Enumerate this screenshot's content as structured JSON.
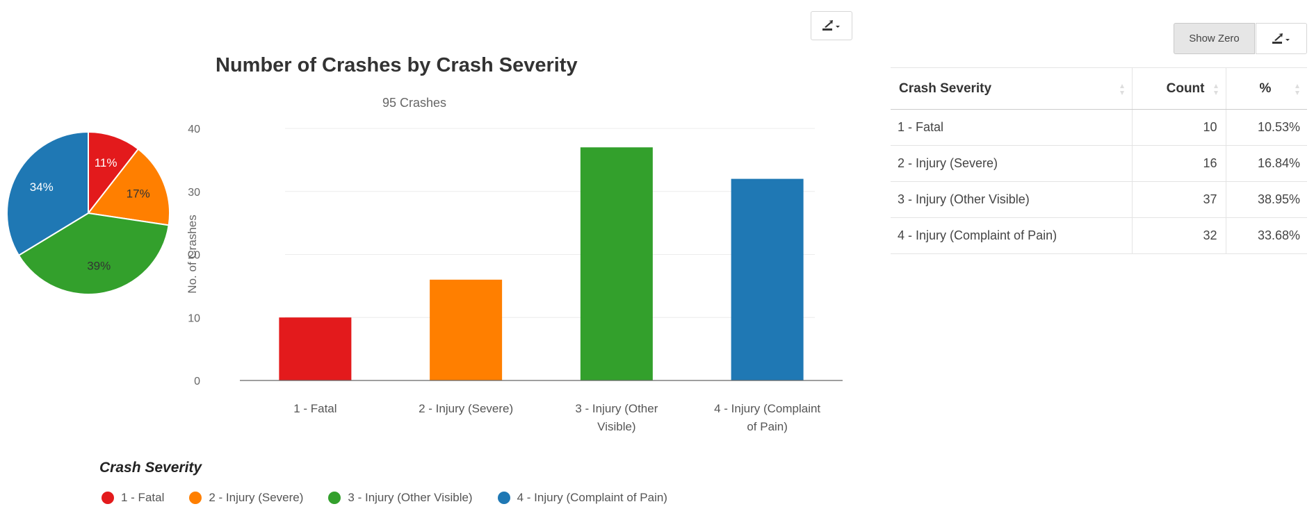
{
  "chart_data": {
    "type": "bar",
    "title": "Number of Crashes by Crash Severity",
    "subtitle": "95 Crashes",
    "ylabel": "No. of Crashes",
    "xlabel": "",
    "ylim": [
      0,
      40
    ],
    "yticks": [
      0,
      10,
      20,
      30,
      40
    ],
    "grid": true,
    "categories": [
      "1 - Fatal",
      "2 - Injury (Severe)",
      "3 - Injury (Other Visible)",
      "4 - Injury (Complaint of Pain)"
    ],
    "category_label_lines": [
      [
        "1 - Fatal"
      ],
      [
        "2 - Injury (Severe)"
      ],
      [
        "3 - Injury (Other",
        "Visible)"
      ],
      [
        "4 - Injury (Complaint",
        "of Pain)"
      ]
    ],
    "values": [
      10,
      16,
      37,
      32
    ],
    "colors": [
      "#e31a1c",
      "#ff7f00",
      "#33a02c",
      "#1f78b4"
    ],
    "legend": {
      "title": "Crash Severity",
      "placement": "bottom-left",
      "entries": [
        "1 - Fatal",
        "2 - Injury (Severe)",
        "3 - Injury (Other Visible)",
        "4 - Injury (Complaint of Pain)"
      ]
    },
    "pie": {
      "type": "pie",
      "values": [
        10,
        16,
        37,
        32
      ],
      "labels": [
        "11%",
        "17%",
        "39%",
        "34%"
      ],
      "colors": [
        "#e31a1c",
        "#ff7f00",
        "#33a02c",
        "#1f78b4"
      ],
      "label_colors": [
        "#ffffff",
        "#333333",
        "#333333",
        "#ffffff"
      ]
    }
  },
  "toolbar": {
    "chart_export_icon": "export-download-icon",
    "show_zero_label": "Show Zero",
    "table_export_icon": "export-download-icon"
  },
  "table": {
    "headers": {
      "severity": "Crash Severity",
      "count": "Count",
      "percent": "%"
    },
    "rows": [
      {
        "severity": "1 - Fatal",
        "count": "10",
        "percent": "10.53%"
      },
      {
        "severity": "2 - Injury (Severe)",
        "count": "16",
        "percent": "16.84%"
      },
      {
        "severity": "3 - Injury (Other Visible)",
        "count": "37",
        "percent": "38.95%"
      },
      {
        "severity": "4 - Injury (Complaint of Pain)",
        "count": "32",
        "percent": "33.68%"
      }
    ]
  }
}
